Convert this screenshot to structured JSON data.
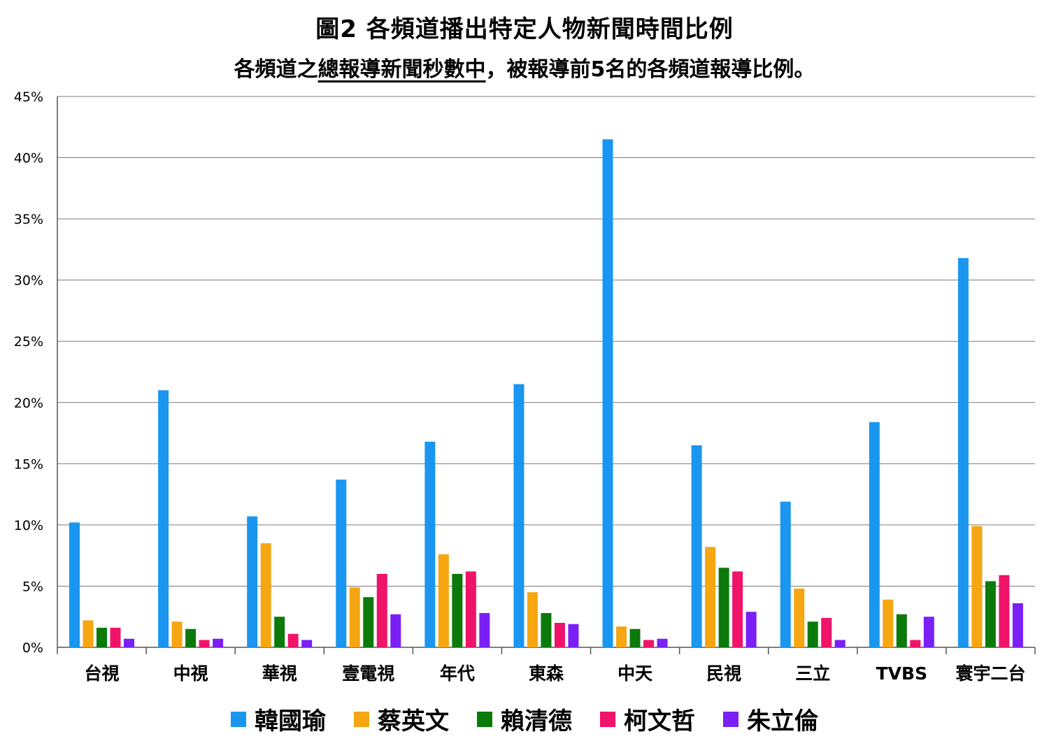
{
  "chart_data": {
    "type": "bar",
    "title": "圖2 各頻道播出特定人物新聞時間比例",
    "subtitle_parts": [
      "各頻道之",
      "總報導新聞秒數中",
      "，被報導前5名的各頻道報導比例。"
    ],
    "categories": [
      "台視",
      "中視",
      "華視",
      "壹電視",
      "年代",
      "東森",
      "中天",
      "民視",
      "三立",
      "TVBS",
      "寰宇二台"
    ],
    "ylim": [
      0,
      45
    ],
    "yticks": [
      "0%",
      "5%",
      "10%",
      "15%",
      "20%",
      "25%",
      "30%",
      "35%",
      "40%",
      "45%"
    ],
    "ytick_values": [
      0,
      5,
      10,
      15,
      20,
      25,
      30,
      35,
      40,
      45
    ],
    "grid": true,
    "legend_position": "bottom",
    "series": [
      {
        "name": "韓國瑜",
        "color": "#1a96f0",
        "values": [
          10.2,
          21.0,
          10.7,
          13.7,
          16.8,
          21.5,
          41.5,
          16.5,
          11.9,
          18.4,
          31.8
        ]
      },
      {
        "name": "蔡英文",
        "color": "#f5a611",
        "values": [
          2.2,
          2.1,
          8.5,
          4.9,
          7.6,
          4.5,
          1.7,
          8.2,
          4.8,
          3.9,
          9.9
        ]
      },
      {
        "name": "賴清德",
        "color": "#0b7a0b",
        "values": [
          1.6,
          1.5,
          2.5,
          4.1,
          6.0,
          2.8,
          1.5,
          6.5,
          2.1,
          2.7,
          5.4
        ]
      },
      {
        "name": "柯文哲",
        "color": "#f0136a",
        "values": [
          1.6,
          0.6,
          1.1,
          6.0,
          6.2,
          2.0,
          0.6,
          6.2,
          2.4,
          0.6,
          5.9
        ]
      },
      {
        "name": "朱立倫",
        "color": "#7a1ff5",
        "values": [
          0.7,
          0.7,
          0.6,
          2.7,
          2.8,
          1.9,
          0.7,
          2.9,
          0.6,
          2.5,
          3.6
        ]
      }
    ]
  }
}
